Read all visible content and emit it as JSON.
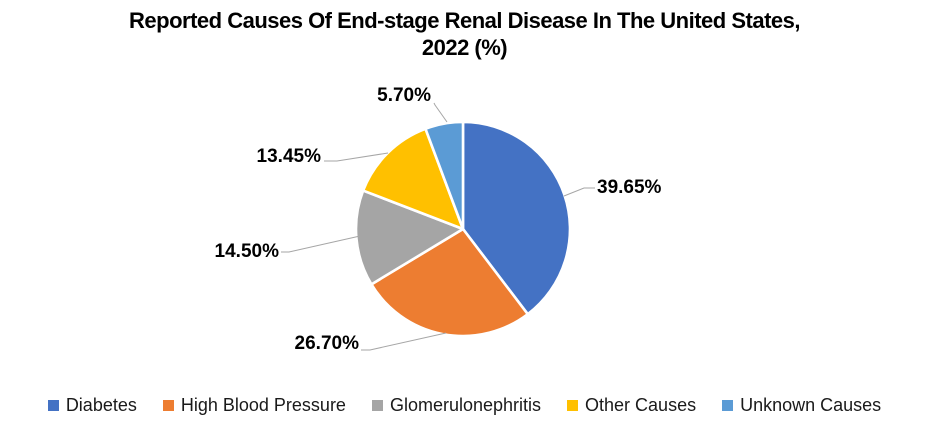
{
  "chart_data": {
    "type": "pie",
    "title": "Reported Causes Of End-stage Renal Disease In The United States, 2022 (%)",
    "title_lines": [
      "Reported Causes Of End-stage Renal Disease In The United States,",
      "2022 (%)"
    ],
    "unit": "%",
    "start_angle_deg": 0,
    "direction": "clockwise",
    "legend_position": "bottom",
    "background_color": "#FFFFFF",
    "leader_line_color": "#A6A6A6",
    "slice_border_color": "#FFFFFF",
    "slices": [
      {
        "label": "Diabetes",
        "value": 39.65,
        "display": "39.65%",
        "color": "#4472C4"
      },
      {
        "label": "High Blood Pressure",
        "value": 26.7,
        "display": "26.70%",
        "color": "#ED7D31"
      },
      {
        "label": "Glomerulonephritis",
        "value": 14.5,
        "display": "14.50%",
        "color": "#A5A5A5"
      },
      {
        "label": "Other Causes",
        "value": 13.45,
        "display": "13.45%",
        "color": "#FFC000"
      },
      {
        "label": "Unknown Causes",
        "value": 5.7,
        "display": "5.70%",
        "color": "#5B9BD5"
      }
    ]
  }
}
